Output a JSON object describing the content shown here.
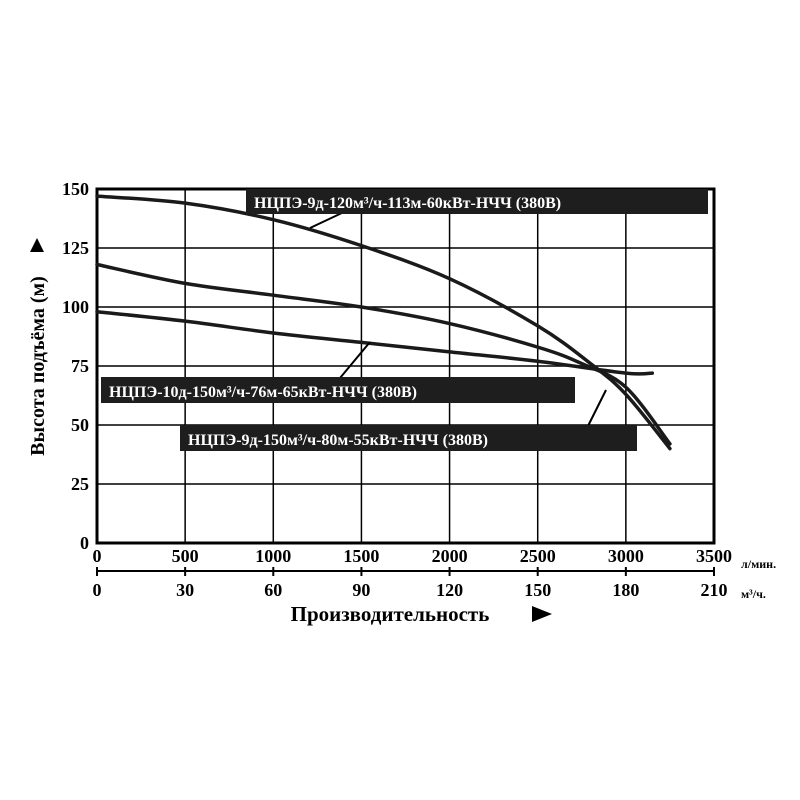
{
  "chart_data": {
    "type": "line",
    "ylabel": "Высота подъёма (м)",
    "xlabel": "Производительность",
    "ylim": [
      0,
      150
    ],
    "xlim": [
      0,
      3500
    ],
    "y_ticks": [
      "0",
      "25",
      "50",
      "75",
      "100",
      "125",
      "150"
    ],
    "x_ticks_lmin": [
      "0",
      "500",
      "1000",
      "1500",
      "2000",
      "2500",
      "3000",
      "3500"
    ],
    "x_ticks_m3h": [
      "0",
      "30",
      "60",
      "90",
      "120",
      "150",
      "180",
      "210"
    ],
    "x_unit_lmin": "л/мин.",
    "x_unit_m3h": "м³/ч.",
    "grid": true,
    "series": [
      {
        "name": "НЦПЭ-9д-120м³/ч-113м-60кВт-НЧЧ (380В)",
        "x": [
          0,
          500,
          1000,
          1500,
          2000,
          2500,
          2800,
          3000,
          3250
        ],
        "y": [
          147,
          144,
          137,
          126,
          112,
          92,
          76,
          63,
          40
        ]
      },
      {
        "name": "НЦПЭ-10д-150м³/ч-76м-65кВт-НЧЧ (380В)",
        "x": [
          0,
          500,
          1000,
          1500,
          2000,
          2500,
          2750,
          3000,
          3250
        ],
        "y": [
          118,
          110,
          105,
          100,
          93,
          83,
          76,
          66,
          42
        ]
      },
      {
        "name": "НЦПЭ-9д-150м³/ч-80м-55кВт-НЧЧ (380В)",
        "x": [
          0,
          500,
          1000,
          1500,
          2000,
          2500,
          3000,
          3150
        ],
        "y": [
          98,
          94,
          89,
          85,
          81,
          77,
          72,
          72
        ]
      }
    ]
  }
}
